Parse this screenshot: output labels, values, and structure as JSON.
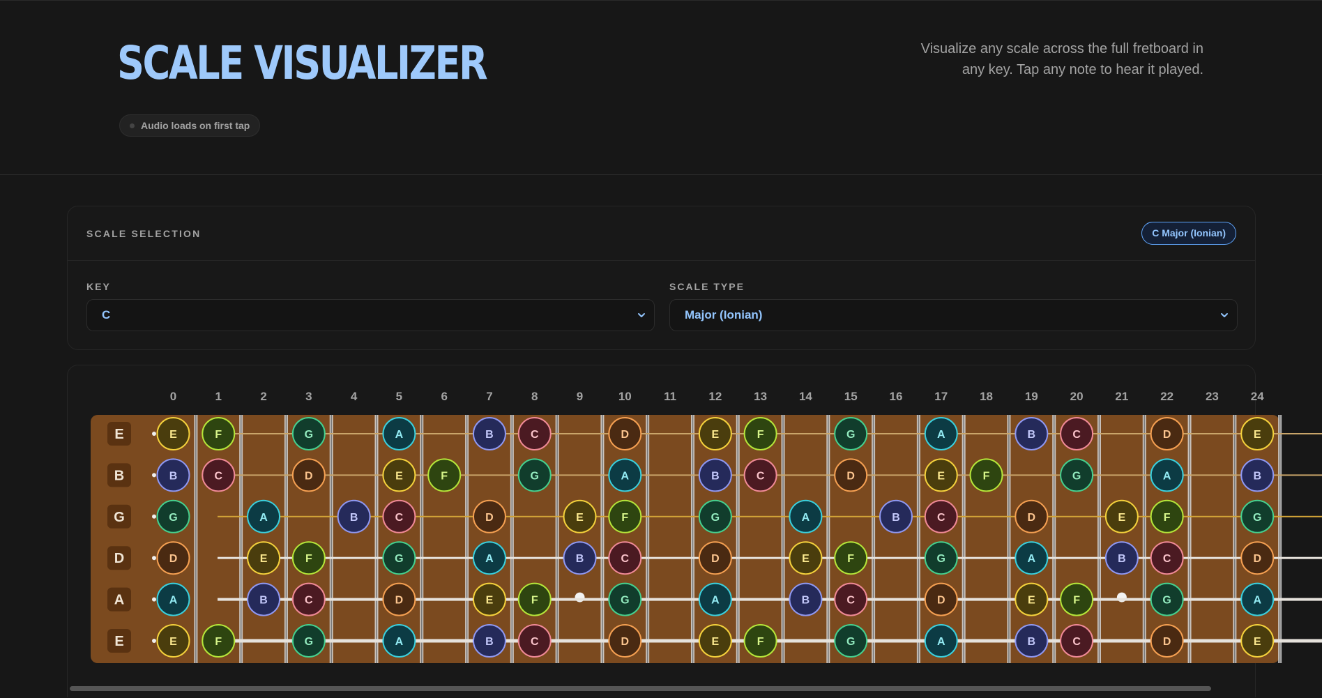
{
  "header": {
    "title": "SCALE VISUALIZER",
    "description_line1": "Visualize any scale across the full fretboard in",
    "description_line2": "any key. Tap any note to hear it played.",
    "audio_status": "Audio loads on first tap"
  },
  "scale_selection": {
    "section_label": "SCALE SELECTION",
    "badge": "C Major (Ionian)",
    "key_label": "KEY",
    "key_value": "C",
    "scale_type_label": "SCALE TYPE",
    "scale_type_value": "Major (Ionian)"
  },
  "fretboard": {
    "fret_numbers": [
      "0",
      "1",
      "2",
      "3",
      "4",
      "5",
      "6",
      "7",
      "8",
      "9",
      "10",
      "11",
      "12",
      "13",
      "14",
      "15",
      "16",
      "17",
      "18",
      "19",
      "20",
      "21",
      "22",
      "23",
      "24"
    ],
    "strings": [
      {
        "name": "E",
        "open": 4,
        "type": "plain"
      },
      {
        "name": "B",
        "open": 11,
        "type": "plain"
      },
      {
        "name": "G",
        "open": 7,
        "type": "plain-gold"
      },
      {
        "name": "D",
        "open": 2,
        "type": "wound"
      },
      {
        "name": "A",
        "open": 9,
        "type": "wound"
      },
      {
        "name": "E",
        "open": 4,
        "type": "wound"
      }
    ],
    "scale_notes": [
      "C",
      "D",
      "E",
      "F",
      "G",
      "A",
      "B"
    ],
    "note_colors": {
      "C": {
        "fill": "#4b1a22",
        "stroke": "#f08a97",
        "text": "#fbc4cb"
      },
      "D": {
        "fill": "#4a2a12",
        "stroke": "#f5a052",
        "text": "#fcc58f"
      },
      "E": {
        "fill": "#4a3d0d",
        "stroke": "#f4d13c",
        "text": "#fbe88e"
      },
      "F": {
        "fill": "#2e4510",
        "stroke": "#b5e63a",
        "text": "#d7f58a"
      },
      "G": {
        "fill": "#113d2c",
        "stroke": "#45d08f",
        "text": "#94ecc0"
      },
      "A": {
        "fill": "#0c3b44",
        "stroke": "#3ad0de",
        "text": "#93ebf3"
      },
      "B": {
        "fill": "#252a5a",
        "stroke": "#8f98f2",
        "text": "#c3c8fa"
      }
    },
    "board_color": "#7b4a1f"
  }
}
